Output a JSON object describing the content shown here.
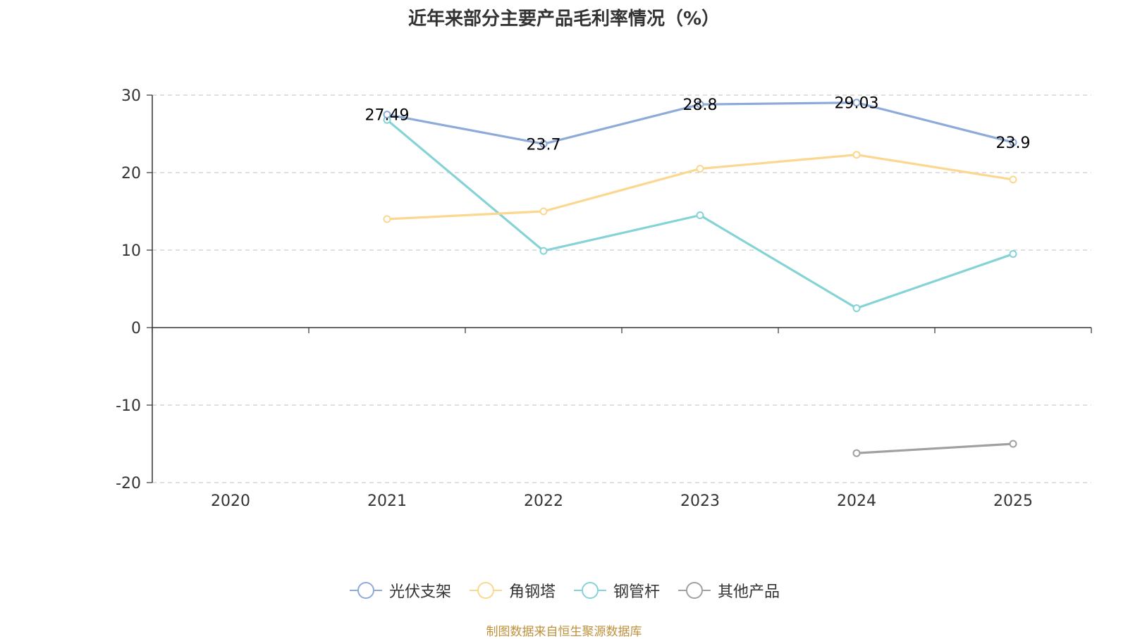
{
  "chart_data": {
    "type": "line",
    "title": "近年来部分主要产品毛利率情况（%）",
    "categories": [
      "2020",
      "2021",
      "2022",
      "2023",
      "2024",
      "2025"
    ],
    "ylim": [
      -20,
      30
    ],
    "yticks": [
      30,
      20,
      10,
      0,
      -10,
      -20
    ],
    "grid": true,
    "legend_position": "bottom",
    "series": [
      {
        "name": "光伏支架",
        "color": "#8eaad9",
        "values": [
          null,
          27.49,
          23.7,
          28.8,
          29.03,
          23.9
        ],
        "show_labels": true
      },
      {
        "name": "角钢塔",
        "color": "#fbd78f",
        "values": [
          null,
          14.0,
          15.0,
          20.5,
          22.3,
          19.1
        ],
        "show_labels": false
      },
      {
        "name": "钢管杆",
        "color": "#84d3d6",
        "values": [
          null,
          26.8,
          9.9,
          14.5,
          2.5,
          9.5
        ],
        "show_labels": false
      },
      {
        "name": "其他产品",
        "color": "#a0a0a0",
        "values": [
          null,
          null,
          null,
          null,
          -16.2,
          -15.0
        ],
        "show_labels": false
      }
    ]
  },
  "source_text": "制图数据来自恒生聚源数据库"
}
